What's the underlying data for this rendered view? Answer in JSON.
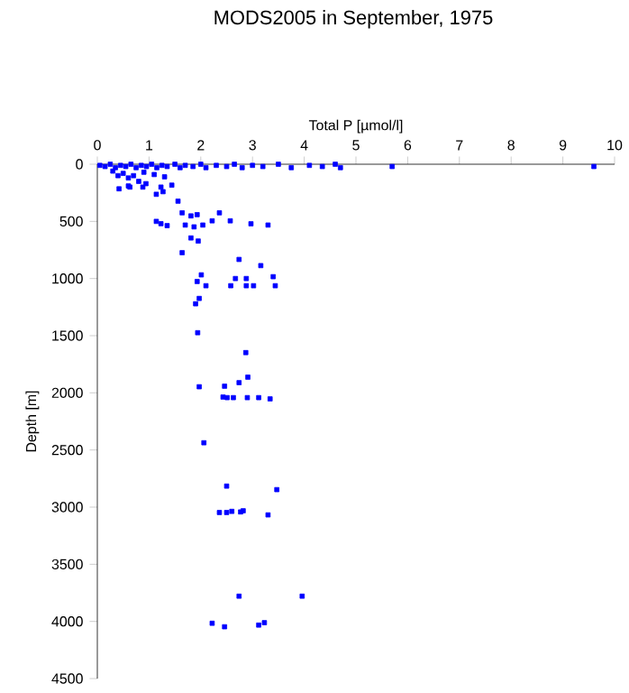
{
  "chart_data": {
    "type": "scatter",
    "title": "MODS2005 in September, 1975",
    "xlabel": "Total P [µmol/l]",
    "ylabel": "Depth [m]",
    "x": [
      0.05,
      0.15,
      0.25,
      0.35,
      0.45,
      0.55,
      0.65,
      0.75,
      0.85,
      0.95,
      1.05,
      1.15,
      1.25,
      1.35,
      1.5,
      1.6,
      1.7,
      1.85,
      2.0,
      2.1,
      2.3,
      2.5,
      2.65,
      2.8,
      3.0,
      3.2,
      3.5,
      3.75,
      4.1,
      4.35,
      4.6,
      4.7,
      5.7,
      9.6,
      0.3,
      0.5,
      0.7,
      0.9,
      1.1,
      0.6,
      1.3,
      0.4,
      0.8,
      0.42,
      0.6,
      0.63,
      0.88,
      0.94,
      1.14,
      1.23,
      1.27,
      1.44,
      1.56,
      1.14,
      1.23,
      1.35,
      1.64,
      1.7,
      1.81,
      1.93,
      1.87,
      1.81,
      1.95,
      1.64,
      2.04,
      2.22,
      2.36,
      2.57,
      2.97,
      3.3,
      2.74,
      3.16,
      2.01,
      1.93,
      2.1,
      1.97,
      1.9,
      2.58,
      2.67,
      2.88,
      2.88,
      3.02,
      3.4,
      3.44,
      1.94,
      2.87,
      2.91,
      1.97,
      2.46,
      2.74,
      2.43,
      2.51,
      2.63,
      2.9,
      3.12,
      3.34,
      2.06,
      2.5,
      3.47,
      2.36,
      2.5,
      2.6,
      2.77,
      2.82,
      3.3,
      2.74,
      3.96,
      2.22,
      2.46,
      3.12,
      3.23
    ],
    "values": [
      10,
      20,
      0,
      30,
      10,
      20,
      0,
      30,
      10,
      20,
      0,
      30,
      10,
      20,
      0,
      30,
      10,
      20,
      0,
      30,
      10,
      20,
      0,
      30,
      10,
      20,
      0,
      30,
      10,
      20,
      0,
      30,
      20,
      20,
      60,
      80,
      100,
      70,
      90,
      120,
      110,
      100,
      150,
      215,
      190,
      200,
      200,
      170,
      263,
      200,
      240,
      183,
      323,
      500,
      520,
      537,
      425,
      532,
      452,
      441,
      548,
      645,
      672,
      774,
      532,
      495,
      425,
      495,
      521,
      532,
      833,
      887,
      968,
      1026,
      1063,
      1174,
      1221,
      1063,
      1000,
      1000,
      1063,
      1063,
      984,
      1063,
      1474,
      1648,
      1863,
      1947,
      1942,
      1911,
      2037,
      2042,
      2042,
      2042,
      2042,
      2053,
      2437,
      2816,
      2847,
      3047,
      3047,
      3037,
      3042,
      3032,
      3068,
      3779,
      3779,
      4016,
      4047,
      4032,
      4011
    ],
    "color": "#0000ff",
    "marker": "square",
    "xlim": [
      0,
      10
    ],
    "xticks": [
      0,
      1,
      2,
      3,
      4,
      5,
      6,
      7,
      8,
      9,
      10
    ],
    "ylim": [
      4500,
      0
    ],
    "yticks": [
      0,
      500,
      1000,
      1500,
      2000,
      2500,
      3000,
      3500,
      4000,
      4500
    ]
  }
}
